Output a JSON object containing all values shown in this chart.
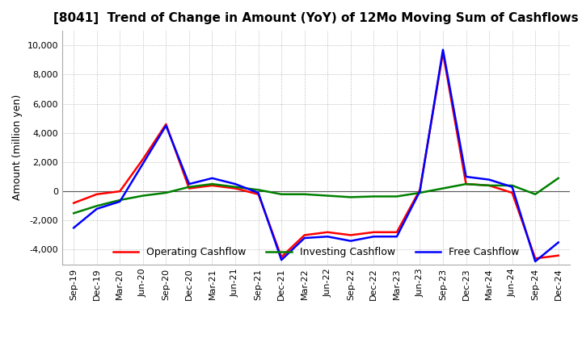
{
  "title": "[8041]  Trend of Change in Amount (YoY) of 12Mo Moving Sum of Cashflows",
  "ylabel": "Amount (million yen)",
  "ylim": [
    -5000,
    11000
  ],
  "yticks": [
    -4000,
    -2000,
    0,
    2000,
    4000,
    6000,
    8000,
    10000
  ],
  "x_labels": [
    "Sep-19",
    "Dec-19",
    "Mar-20",
    "Jun-20",
    "Sep-20",
    "Dec-20",
    "Mar-21",
    "Jun-21",
    "Sep-21",
    "Dec-21",
    "Mar-22",
    "Jun-22",
    "Sep-22",
    "Dec-22",
    "Mar-23",
    "Jun-23",
    "Sep-23",
    "Dec-23",
    "Mar-24",
    "Jun-24",
    "Sep-24",
    "Dec-24"
  ],
  "operating": [
    -800,
    -200,
    0,
    2200,
    4600,
    200,
    400,
    200,
    -200,
    -4500,
    -3000,
    -2800,
    -3000,
    -2800,
    -2800,
    100,
    9500,
    500,
    400,
    -100,
    -4600,
    -4400
  ],
  "investing": [
    -1500,
    -1000,
    -600,
    -300,
    -100,
    300,
    500,
    300,
    100,
    -200,
    -200,
    -300,
    -400,
    -350,
    -350,
    -100,
    200,
    500,
    400,
    400,
    -200,
    900
  ],
  "free": [
    -2500,
    -1200,
    -700,
    1900,
    4500,
    500,
    900,
    500,
    -100,
    -4700,
    -3200,
    -3100,
    -3400,
    -3100,
    -3100,
    0,
    9700,
    1000,
    800,
    300,
    -4800,
    -3500
  ],
  "operating_color": "#ff0000",
  "investing_color": "#008000",
  "free_color": "#0000ff",
  "background_color": "#ffffff",
  "grid_color": "#aaaaaa"
}
